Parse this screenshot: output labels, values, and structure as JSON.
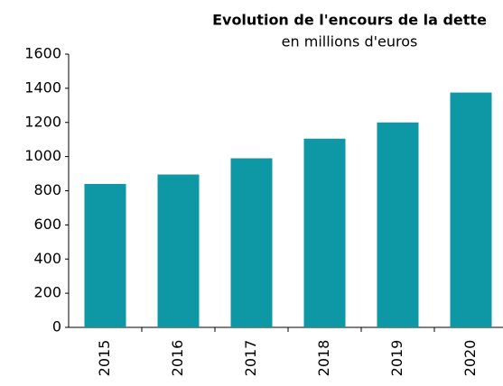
{
  "chart_data": {
    "type": "bar",
    "title": "Evolution de l'encours de la dette",
    "subtitle": "en millions d'euros",
    "categories": [
      "2015",
      "2016",
      "2017",
      "2018",
      "2019",
      "2020"
    ],
    "values": [
      840,
      895,
      990,
      1105,
      1200,
      1375
    ],
    "color": "#0e97a5",
    "ylim": [
      0,
      1600
    ],
    "yticks": [
      0,
      200,
      400,
      600,
      800,
      1000,
      1200,
      1400,
      1600
    ],
    "grid": false
  }
}
